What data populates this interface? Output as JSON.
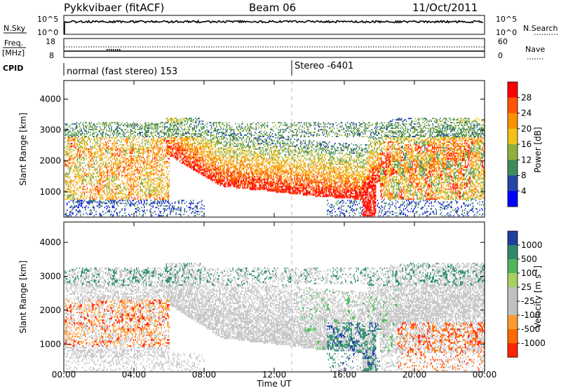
{
  "header": {
    "station": "Pykkvibaer (fitACF)",
    "beam": "Beam 06",
    "date": "11/Oct/2011"
  },
  "strips": {
    "nsky_label": "N.Sky",
    "nsky_top": "10^5",
    "nsky_bottom": "10^0",
    "nsearch_top": "10^5",
    "nsearch_bottom": "10^0",
    "nsearch_label": "N.Search",
    "freq_label": "Freq.",
    "freq_unit": "[MHz]",
    "freq_top": "18",
    "freq_bottom": "8",
    "nave_top": "60",
    "nave_bottom": "0",
    "nave_label": "Nave",
    "cpid_label": "CPID",
    "cpid_mode1": "normal (fast stereo) 153",
    "cpid_mode2": "Stereo -6401"
  },
  "chart_data": [
    {
      "type": "heatmap",
      "name": "power",
      "ylabel": "Slant Range [km]",
      "xlabel": "Time UT",
      "x_ticks": [
        "00:00",
        "04:00",
        "08:00",
        "12:00",
        "16:00",
        "20:00",
        "00:00"
      ],
      "x_range_hours": [
        0,
        24
      ],
      "y_range_km": [
        180,
        4600
      ],
      "y_ticks": [
        1000,
        2000,
        3000,
        4000
      ],
      "colorbar_label": "Power [dB]",
      "colorbar_ticks": [
        "28",
        "24",
        "20",
        "16",
        "12",
        "8",
        "4"
      ],
      "colorbar_colors": [
        "#ff0000",
        "#ff5500",
        "#ff9000",
        "#f2c21b",
        "#8fb03b",
        "#3d8c5c",
        "#2747a6",
        "#0000ff"
      ],
      "stereo_switch_hour": 13.0
    },
    {
      "type": "heatmap",
      "name": "velocity",
      "ylabel": "Slant Range [km]",
      "xlabel": "Time UT",
      "x_ticks": [
        "00:00",
        "04:00",
        "08:00",
        "12:00",
        "16:00",
        "20:00",
        "00:00"
      ],
      "x_range_hours": [
        0,
        24
      ],
      "y_range_km": [
        180,
        4600
      ],
      "y_ticks": [
        1000,
        2000,
        3000,
        4000
      ],
      "colorbar_label": "Velocity [m s",
      "colorbar_label_sup": "-1",
      "colorbar_label_end": "]",
      "colorbar_ticks": [
        "1000",
        "500",
        "100",
        "25",
        "-25",
        "-100",
        "-500",
        "-1000"
      ],
      "colorbar_colors": [
        "#1f3f9e",
        "#2f8a6a",
        "#4fb65a",
        "#a8d060",
        "#c0c0c0",
        "#c0c0c0",
        "#ff9a30",
        "#ff6a00",
        "#ff2400"
      ],
      "stereo_switch_hour": 13.0
    }
  ]
}
